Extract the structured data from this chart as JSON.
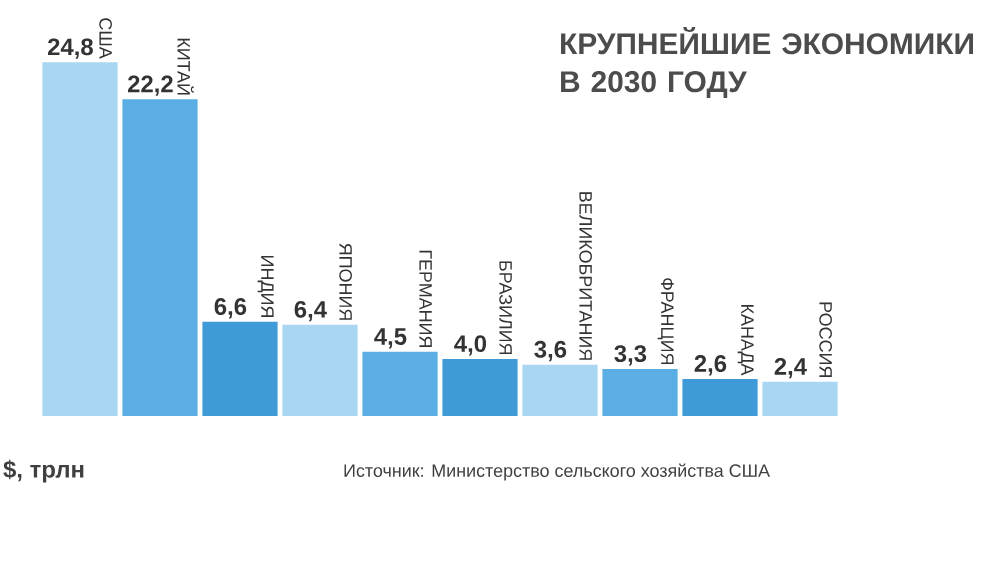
{
  "chart_data": {
    "type": "bar",
    "title": "КРУПНЕЙШИЕ ЭКОНОМИКИ В 2030 ГОДУ",
    "ylabel": "$, трлн",
    "categories": [
      "США",
      "КИТАЙ",
      "ИНДИЯ",
      "ЯПОНИЯ",
      "ГЕРМАНИЯ",
      "БРАЗИЛИЯ",
      "ВЕЛИКОБРИТАНИЯ",
      "ФРАНЦИЯ",
      "КАНАДА",
      "РОССИЯ"
    ],
    "values": [
      24.8,
      22.2,
      6.6,
      6.4,
      4.5,
      4.0,
      3.6,
      3.3,
      2.6,
      2.4
    ],
    "value_labels": [
      "24,8",
      "22,2",
      "6,6",
      "6,4",
      "4,5",
      "4,0",
      "3,6",
      "3,3",
      "2,6",
      "2,4"
    ],
    "colors": [
      "#a9d6f2",
      "#5aaee3",
      "#3f9bd8",
      "#a9d6f2",
      "#5aaee3",
      "#3f9bd8",
      "#a9d6f2",
      "#5aaee3",
      "#3f9bd8",
      "#a9d6f2"
    ],
    "annotations": [
      "Источник: Министерство сельского хозяйства США"
    ]
  }
}
